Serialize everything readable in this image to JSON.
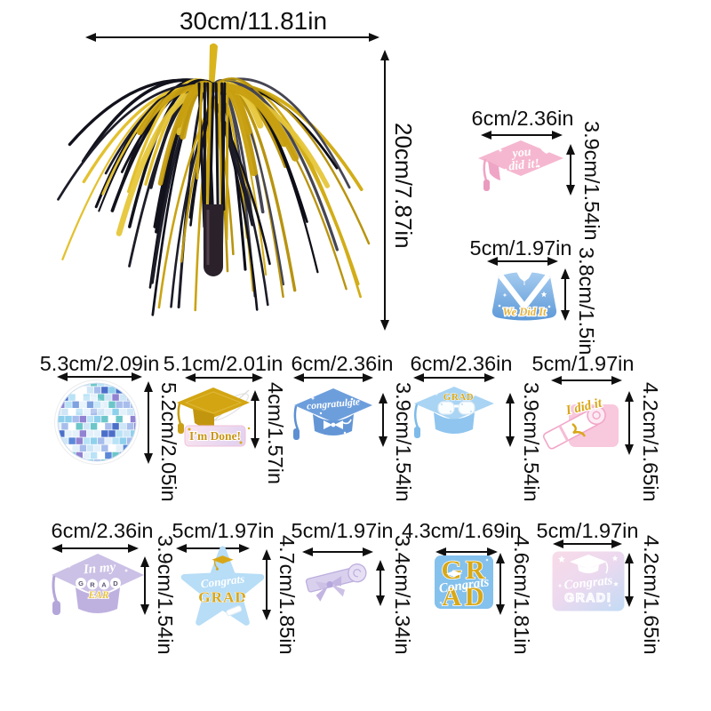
{
  "palette": {
    "dimension_line": "#101010",
    "foil_black": "#12121d",
    "foil_gold": "#d2ad18",
    "pink": "#f5b7cf",
    "gown_blue": "#5d99d8",
    "cap_mid_blue": "#6d9edc",
    "cap_light_blue": "#a9d4f3",
    "lavender": "#cbc0e5",
    "star_blue": "#b7ddf7",
    "text_gold": "#d9a816"
  },
  "product": {
    "centerpiece": {
      "id": "black-gold-foil-fountain",
      "width_label": "30cm/11.81in",
      "height_label": "20cm/7.87in"
    },
    "items": [
      {
        "id": "pink-grad-cap",
        "width_label": "6cm/2.36in",
        "height_label": "3.9cm/1.54in",
        "texts": {
          "line1": "you",
          "line2": "did it!"
        }
      },
      {
        "id": "blue-gown",
        "width_label": "5cm/1.97in",
        "height_label": "3.8cm/1.5in",
        "texts": {
          "line1": "We Did It"
        }
      },
      {
        "id": "disco-ball",
        "width_label": "5.3cm/2.09in",
        "height_label": "5.2cm/2.05in",
        "texts": {}
      },
      {
        "id": "gold-cap-im-done",
        "width_label": "5.1cm/2.01in",
        "height_label": "4cm/1.57in",
        "texts": {
          "line1": "I'm Done!"
        }
      },
      {
        "id": "blue-cap-congratulate",
        "width_label": "6cm/2.36in",
        "height_label": "3.9cm/1.54in",
        "texts": {
          "line1": "congratulgte"
        }
      },
      {
        "id": "blue-cap-grad-glasses",
        "width_label": "6cm/2.36in",
        "height_label": "3.9cm/1.54in",
        "texts": {
          "line1": "GRAD"
        }
      },
      {
        "id": "pink-scroll-i-did-it",
        "width_label": "5cm/1.97in",
        "height_label": "4.2cm/1.65in",
        "texts": {
          "line1": "I did it"
        }
      },
      {
        "id": "purple-cap-in-my-grad-era",
        "width_label": "6cm/2.36in",
        "height_label": "3.9cm/1.54in",
        "texts": {
          "line1": "In my",
          "l1": "G",
          "l2": "R",
          "l3": "A",
          "l4": "D",
          "line3": "EAR"
        }
      },
      {
        "id": "blue-star-congrats-grad",
        "width_label": "5cm/1.97in",
        "height_label": "4.7cm/1.85in",
        "texts": {
          "line1": "Congrats",
          "line2": "GRAD"
        }
      },
      {
        "id": "purple-diploma-scroll",
        "width_label": "5cm/1.97in",
        "height_label": "3.4cm/1.34in",
        "texts": {}
      },
      {
        "id": "grad-block-letters",
        "width_label": "4.3cm/1.69in",
        "height_label": "4.6cm/1.81in",
        "texts": {
          "line1": "GR",
          "line2": "AD",
          "line3": "Congrats"
        }
      },
      {
        "id": "gradient-square-congrats-grad",
        "width_label": "5cm/1.97in",
        "height_label": "4.2cm/1.65in",
        "texts": {
          "line1": "Congrats",
          "line2": "GRAD!"
        }
      }
    ]
  }
}
